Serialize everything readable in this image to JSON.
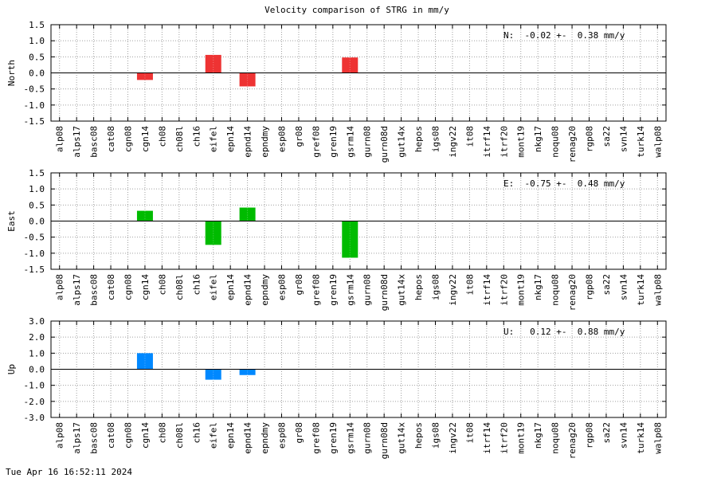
{
  "title": "Velocity comparison of STRG in mm/y",
  "timestamp": "Tue Apr 16 16:52:11 2024",
  "chart_data": [
    {
      "type": "bar",
      "ylabel": "North",
      "ylim": [
        -1.5,
        1.5
      ],
      "yticks": [
        "1.5",
        "1.0",
        "0.5",
        "0.0",
        "-0.5",
        "-1.0",
        "-1.5"
      ],
      "summary": "N:  -0.02 +-  0.38 mm/y",
      "color": "#ee3333",
      "grid": true,
      "categories": [
        "alp08",
        "alps17",
        "basc08",
        "cat08",
        "cgn08",
        "cgn14",
        "ch08",
        "ch08l",
        "ch16",
        "eifel",
        "epn14",
        "epnd14",
        "epndmy",
        "esp08",
        "gr08",
        "gref08",
        "gren19",
        "gsrm14",
        "gurn08",
        "gurn08d",
        "gut14x",
        "hepos",
        "igs08",
        "ingv22",
        "it08",
        "itrf14",
        "itrf20",
        "mont19",
        "nkg17",
        "noqu08",
        "renag20",
        "rgp08",
        "sa22",
        "svn14",
        "turk14",
        "walp08"
      ],
      "values": [
        null,
        null,
        null,
        null,
        null,
        -0.22,
        null,
        null,
        null,
        0.56,
        null,
        -0.42,
        null,
        null,
        null,
        null,
        null,
        0.48,
        null,
        null,
        null,
        null,
        null,
        null,
        null,
        null,
        null,
        null,
        null,
        null,
        null,
        null,
        null,
        null,
        null,
        null
      ]
    },
    {
      "type": "bar",
      "ylabel": "East",
      "ylim": [
        -1.5,
        1.5
      ],
      "yticks": [
        "1.5",
        "1.0",
        "0.5",
        "0.0",
        "-0.5",
        "-1.0",
        "-1.5"
      ],
      "summary": "E:  -0.75 +-  0.48 mm/y",
      "color": "#00bb00",
      "grid": true,
      "categories": [
        "alp08",
        "alps17",
        "basc08",
        "cat08",
        "cgn08",
        "cgn14",
        "ch08",
        "ch08l",
        "ch16",
        "eifel",
        "epn14",
        "epnd14",
        "epndmy",
        "esp08",
        "gr08",
        "gref08",
        "gren19",
        "gsrm14",
        "gurn08",
        "gurn08d",
        "gut14x",
        "hepos",
        "igs08",
        "ingv22",
        "it08",
        "itrf14",
        "itrf20",
        "mont19",
        "nkg17",
        "noqu08",
        "renag20",
        "rgp08",
        "sa22",
        "svn14",
        "turk14",
        "walp08"
      ],
      "values": [
        null,
        null,
        null,
        null,
        null,
        0.32,
        null,
        null,
        null,
        -0.74,
        null,
        0.42,
        null,
        null,
        null,
        null,
        null,
        -1.14,
        null,
        null,
        null,
        null,
        null,
        null,
        null,
        null,
        null,
        null,
        null,
        null,
        null,
        null,
        null,
        null,
        null,
        null
      ]
    },
    {
      "type": "bar",
      "ylabel": "Up",
      "ylim": [
        -3.0,
        3.0
      ],
      "yticks": [
        "3.0",
        "2.0",
        "1.0",
        "0.0",
        "-1.0",
        "-2.0",
        "-3.0"
      ],
      "summary": "U:   0.12 +-  0.88 mm/y",
      "color": "#0088ff",
      "grid": true,
      "categories": [
        "alp08",
        "alps17",
        "basc08",
        "cat08",
        "cgn08",
        "cgn14",
        "ch08",
        "ch08l",
        "ch16",
        "eifel",
        "epn14",
        "epnd14",
        "epndmy",
        "esp08",
        "gr08",
        "gref08",
        "gren19",
        "gsrm14",
        "gurn08",
        "gurn08d",
        "gut14x",
        "hepos",
        "igs08",
        "ingv22",
        "it08",
        "itrf14",
        "itrf20",
        "mont19",
        "nkg17",
        "noqu08",
        "renag20",
        "rgp08",
        "sa22",
        "svn14",
        "turk14",
        "walp08"
      ],
      "values": [
        null,
        null,
        null,
        null,
        null,
        1.0,
        null,
        null,
        null,
        -0.65,
        null,
        -0.36,
        null,
        null,
        null,
        null,
        null,
        null,
        null,
        null,
        null,
        null,
        null,
        null,
        null,
        null,
        null,
        null,
        null,
        null,
        null,
        null,
        null,
        null,
        null,
        null
      ]
    }
  ]
}
